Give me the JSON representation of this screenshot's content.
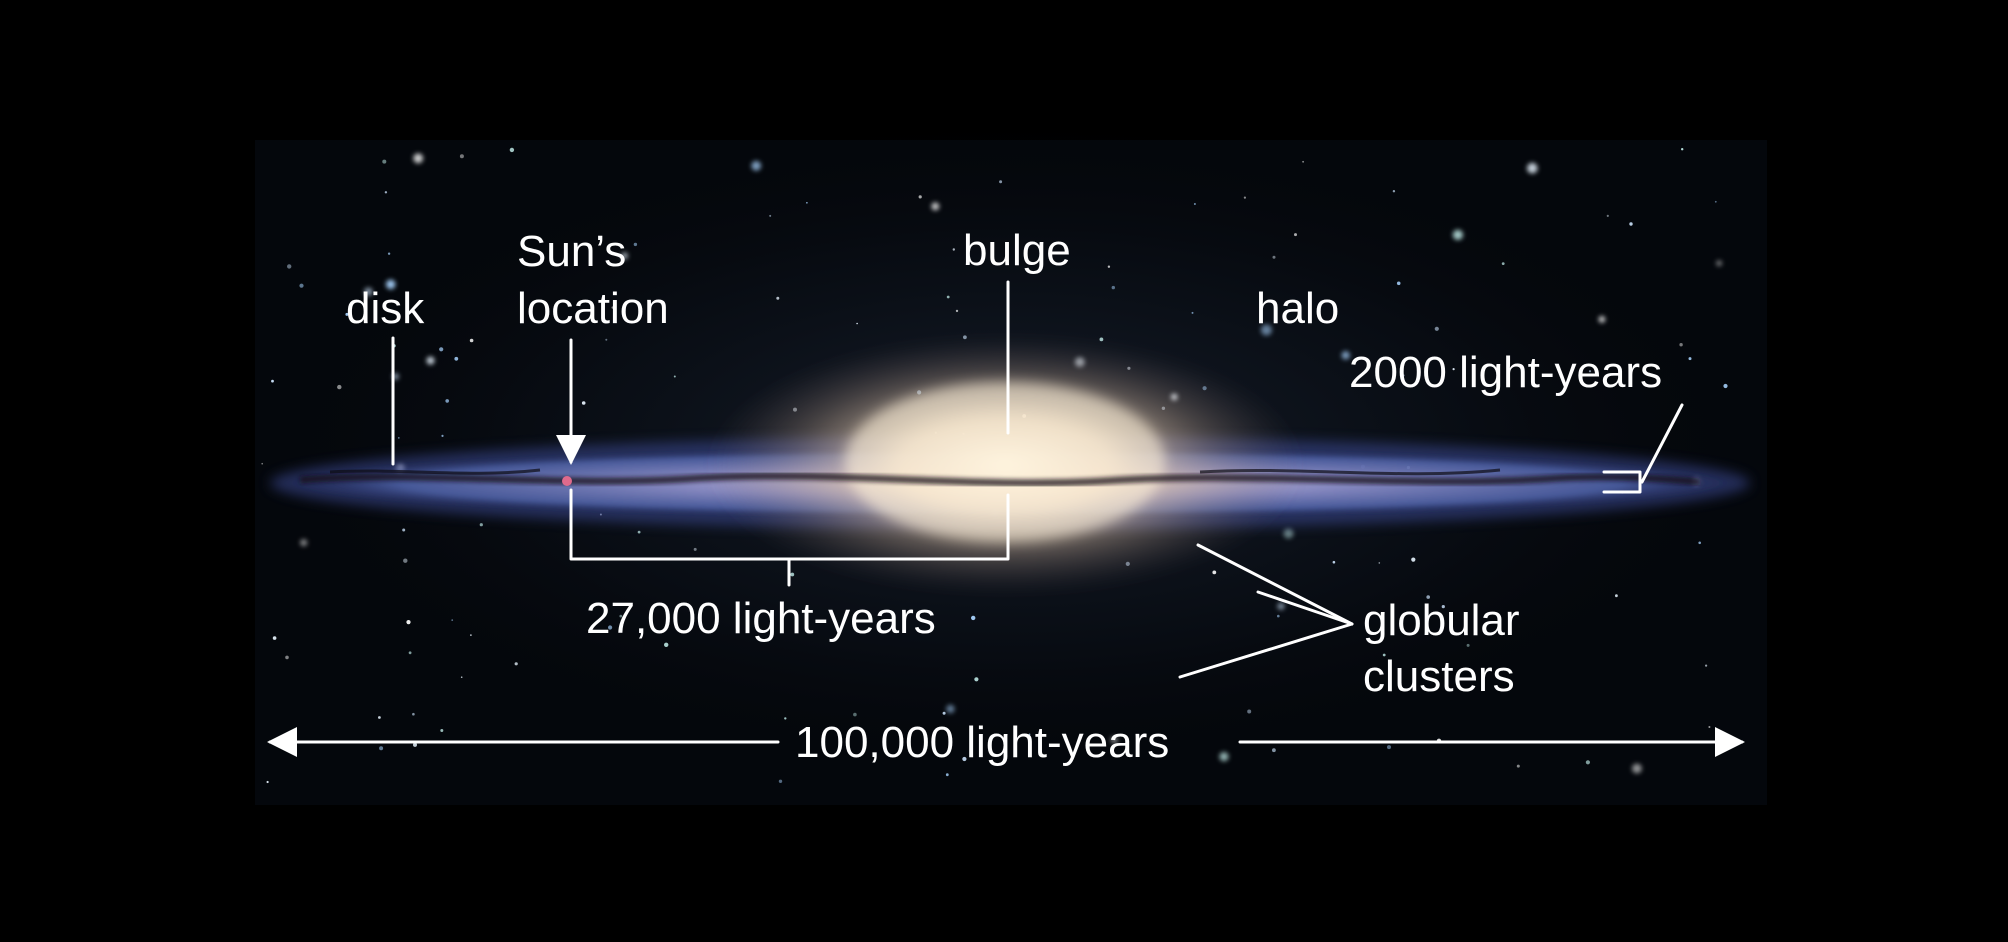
{
  "labels": {
    "disk": "disk",
    "sun_line1": "Sun’s",
    "sun_line2": "location",
    "bulge": "bulge",
    "halo": "halo",
    "thickness": "2000 light-years",
    "sun_distance": "27,000 light-years",
    "globular_line1": "globular",
    "globular_line2": "clusters",
    "diameter": "100,000 light-years"
  },
  "colors": {
    "background": "#000000",
    "label_text": "#ffffff",
    "disk_blue": "#5b6fb8",
    "bulge_core": "#fff4dc",
    "dust_lane": "#141018"
  }
}
